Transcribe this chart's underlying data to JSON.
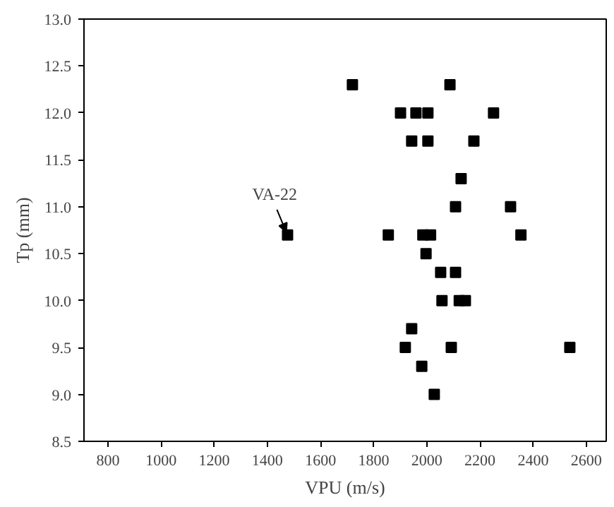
{
  "chart_data": {
    "type": "scatter",
    "xlabel": "VPU (m/s)",
    "ylabel": "Tp (mm)",
    "x": [
      1720,
      2087,
      1901,
      1959,
      2004,
      2251,
      1943,
      2004,
      2177,
      2129,
      2108,
      2315,
      1476,
      1855,
      1985,
      2014,
      2354,
      1997,
      2052,
      2108,
      2057,
      2122,
      2145,
      1943,
      1919,
      2092,
      2538,
      1981,
      2028
    ],
    "values": [
      12.3,
      12.3,
      12.0,
      12.0,
      12.0,
      12.0,
      11.7,
      11.7,
      11.7,
      11.3,
      11.0,
      11.0,
      10.7,
      10.7,
      10.7,
      10.7,
      10.7,
      10.5,
      10.3,
      10.3,
      10.0,
      10.0,
      10.0,
      9.7,
      9.5,
      9.5,
      9.5,
      9.3,
      9.0
    ],
    "color": "#000000",
    "marker": "square",
    "xlim": [
      710,
      2675
    ],
    "xticks": [
      800,
      1000,
      1200,
      1400,
      1600,
      1800,
      2000,
      2200,
      2400,
      2600
    ],
    "ylim": [
      8.5,
      13.0
    ],
    "yticks": [
      {
        "value": 8.5,
        "label": "8.5"
      },
      {
        "value": 9,
        "label": "9.0"
      },
      {
        "value": 9.5,
        "label": "9.5"
      },
      {
        "value": 10,
        "label": "10.0"
      },
      {
        "value": 10.5,
        "label": "10.5"
      },
      {
        "value": 11,
        "label": "11.0"
      },
      {
        "value": 11.5,
        "label": "11.5"
      },
      {
        "value": 12,
        "label": "12.0"
      },
      {
        "value": 12.5,
        "label": "12.5"
      },
      {
        "value": 13,
        "label": "13.0"
      }
    ],
    "annotations": [
      {
        "text": "VA-22",
        "x": 1476,
        "y": 10.7
      }
    ],
    "grid": false
  }
}
